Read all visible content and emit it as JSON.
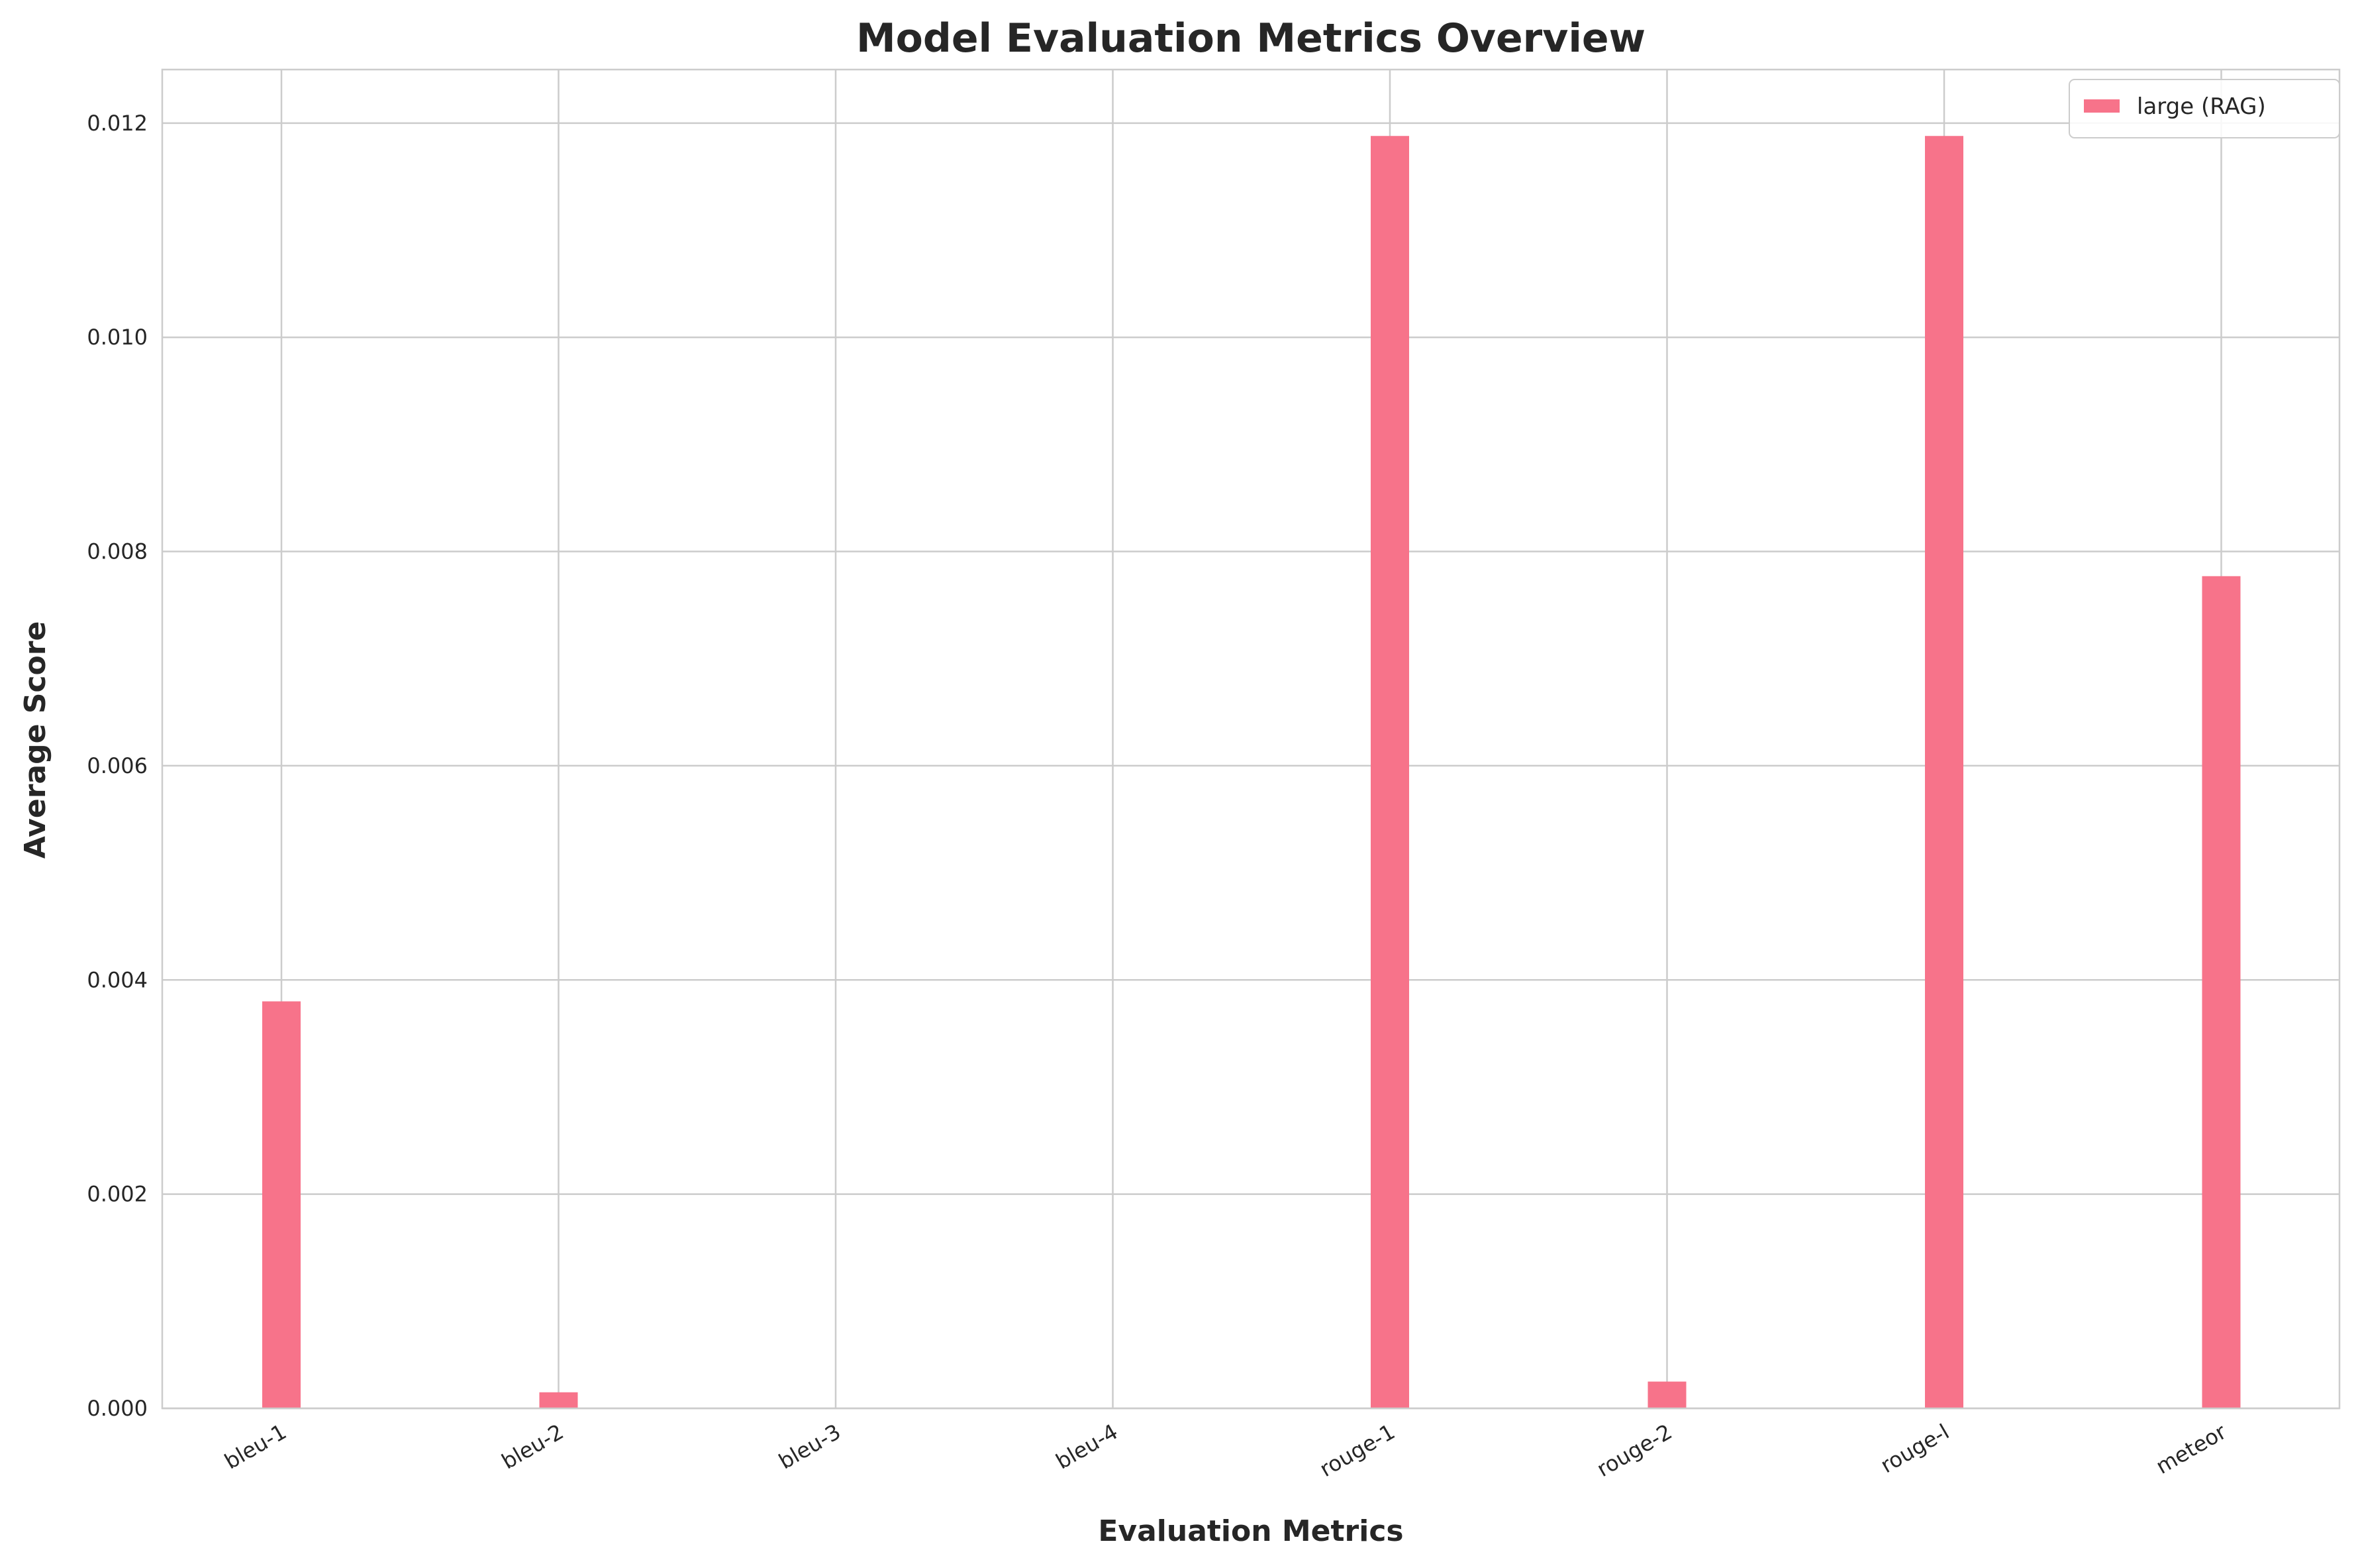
{
  "chart_data": {
    "type": "bar",
    "title": "Model Evaluation Metrics Overview",
    "xlabel": "Evaluation Metrics",
    "ylabel": "Average Score",
    "categories": [
      "bleu-1",
      "bleu-2",
      "bleu-3",
      "bleu-4",
      "rouge-1",
      "rouge-2",
      "rouge-l",
      "meteor"
    ],
    "series": [
      {
        "name": "large (RAG)",
        "color": "#f7738a",
        "values": [
          0.0038,
          0.00015,
          0.0,
          0.0,
          0.01188,
          0.00025,
          0.01188,
          0.00777
        ]
      }
    ],
    "ylim": [
      0,
      0.0125
    ],
    "yticks": [
      "0.000",
      "0.002",
      "0.004",
      "0.006",
      "0.008",
      "0.010",
      "0.012"
    ],
    "grid": true,
    "legend_position": "top-right"
  }
}
